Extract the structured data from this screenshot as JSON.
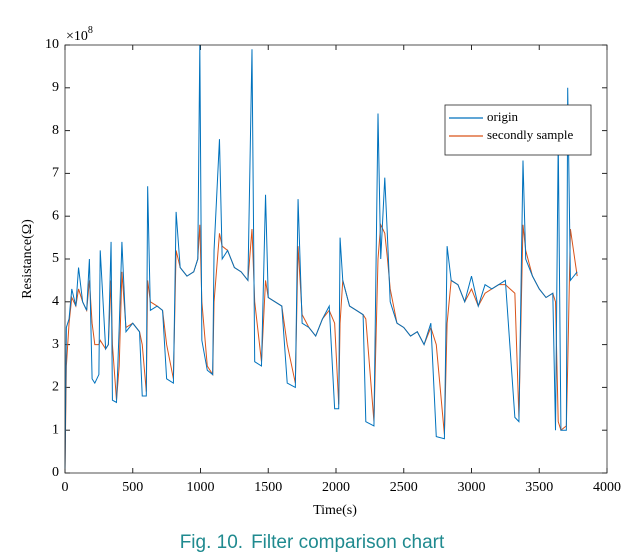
{
  "chart_data": {
    "type": "line",
    "y_label": "Resistance(Ω)",
    "x_label": "Time(s)",
    "y_scale_base": "×10",
    "y_scale_exponent": "8",
    "caption_label": "Fig. 10.",
    "caption_text": "Filter comparison chart",
    "xlim": [
      0,
      4000
    ],
    "xticks": [
      0,
      500,
      1000,
      1500,
      2000,
      2500,
      3000,
      3500,
      4000
    ],
    "ylim": [
      0,
      10
    ],
    "yticks": [
      0,
      1,
      2,
      3,
      4,
      5,
      6,
      7,
      8,
      9,
      10
    ],
    "grid": false,
    "legend_position": "upper right",
    "x": [
      0,
      10,
      30,
      50,
      80,
      100,
      130,
      160,
      180,
      200,
      220,
      250,
      260,
      300,
      320,
      340,
      350,
      380,
      400,
      420,
      450,
      500,
      550,
      570,
      600,
      610,
      630,
      680,
      720,
      750,
      800,
      820,
      850,
      900,
      950,
      980,
      995,
      1010,
      1050,
      1090,
      1100,
      1140,
      1160,
      1200,
      1250,
      1300,
      1350,
      1380,
      1400,
      1450,
      1480,
      1500,
      1550,
      1600,
      1640,
      1700,
      1720,
      1750,
      1800,
      1850,
      1900,
      1950,
      1990,
      2020,
      2030,
      2050,
      2100,
      2150,
      2200,
      2220,
      2280,
      2310,
      2330,
      2360,
      2380,
      2400,
      2450,
      2500,
      2550,
      2600,
      2650,
      2700,
      2740,
      2800,
      2820,
      2850,
      2900,
      2950,
      3000,
      3050,
      3100,
      3150,
      3200,
      3250,
      3320,
      3350,
      3380,
      3400,
      3450,
      3500,
      3550,
      3600,
      3620,
      3640,
      3660,
      3700,
      3710,
      3730,
      3780
    ],
    "series": [
      {
        "name": "origin",
        "color": "#0072bd",
        "values": [
          0.1,
          3.4,
          3.6,
          4.3,
          3.9,
          4.8,
          4.0,
          3.8,
          5.0,
          2.2,
          2.1,
          2.3,
          5.2,
          2.9,
          3.0,
          5.4,
          1.7,
          1.65,
          3.4,
          5.4,
          3.3,
          3.5,
          3.3,
          1.8,
          1.8,
          6.7,
          3.8,
          3.9,
          3.8,
          2.2,
          2.1,
          6.1,
          4.8,
          4.6,
          4.7,
          5.0,
          10.0,
          3.1,
          2.4,
          2.3,
          5.2,
          7.8,
          5.0,
          5.2,
          4.8,
          4.7,
          4.5,
          9.9,
          2.6,
          2.5,
          6.5,
          4.1,
          4.0,
          3.9,
          2.1,
          2.0,
          6.4,
          3.5,
          3.4,
          3.2,
          3.6,
          3.9,
          1.5,
          1.5,
          5.5,
          4.5,
          3.9,
          3.8,
          3.7,
          1.2,
          1.1,
          8.4,
          5.0,
          6.9,
          5.5,
          4.0,
          3.5,
          3.4,
          3.2,
          3.3,
          3.0,
          3.5,
          0.85,
          0.8,
          5.3,
          4.5,
          4.4,
          4.0,
          4.6,
          3.9,
          4.4,
          4.3,
          4.4,
          4.5,
          1.3,
          1.2,
          7.3,
          5.0,
          4.6,
          4.3,
          4.1,
          4.2,
          1.0,
          7.8,
          1.0,
          1.0,
          9.0,
          4.5,
          4.7
        ]
      },
      {
        "name": "secondly sample",
        "color": "#d95319",
        "values": [
          0.1,
          2.5,
          3.5,
          4.1,
          3.9,
          4.3,
          4.0,
          3.8,
          4.5,
          3.5,
          3.0,
          3.0,
          3.1,
          2.9,
          3.0,
          4.5,
          3.0,
          1.7,
          2.5,
          4.7,
          3.4,
          3.5,
          3.3,
          3.0,
          1.9,
          4.5,
          4.0,
          3.9,
          3.8,
          3.0,
          2.2,
          5.2,
          4.8,
          4.6,
          4.7,
          5.0,
          5.8,
          4.0,
          2.5,
          2.3,
          4.0,
          5.6,
          5.3,
          5.2,
          4.8,
          4.7,
          4.5,
          5.7,
          4.0,
          2.6,
          4.5,
          4.1,
          4.0,
          3.9,
          3.0,
          2.1,
          5.3,
          3.7,
          3.4,
          3.2,
          3.6,
          3.8,
          3.5,
          1.6,
          3.5,
          4.5,
          3.9,
          3.8,
          3.7,
          3.6,
          1.2,
          5.0,
          5.8,
          5.6,
          5.0,
          4.3,
          3.5,
          3.4,
          3.2,
          3.3,
          3.0,
          3.4,
          3.0,
          0.9,
          3.5,
          4.5,
          4.4,
          4.0,
          4.3,
          3.9,
          4.2,
          4.3,
          4.4,
          4.4,
          4.2,
          1.3,
          5.8,
          5.2,
          4.6,
          4.3,
          4.1,
          4.2,
          4.0,
          1.2,
          1.0,
          1.1,
          2.5,
          5.7,
          4.6
        ]
      }
    ]
  }
}
